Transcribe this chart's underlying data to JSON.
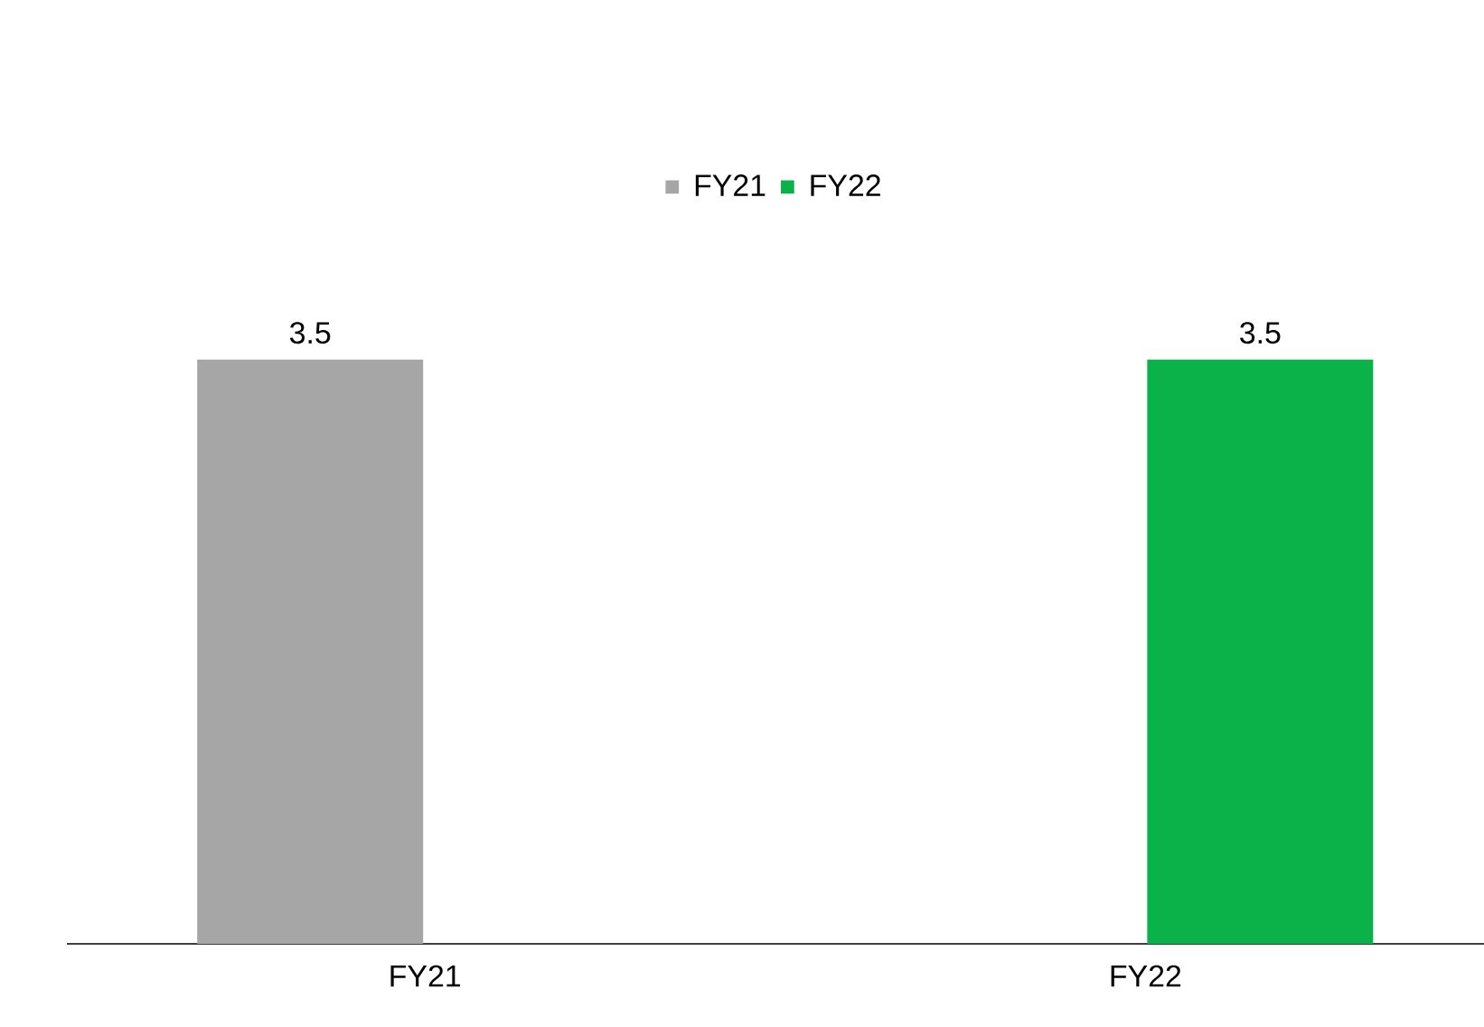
{
  "chart_data": {
    "type": "bar",
    "categories": [
      "FY21",
      "FY22"
    ],
    "series": [
      {
        "name": "FY21",
        "color": "#a6a6a6",
        "values": [
          3.5,
          null
        ]
      },
      {
        "name": "FY22",
        "color": "#0bb24a",
        "values": [
          null,
          3.5
        ]
      }
    ],
    "data_labels": true,
    "legend": "top"
  }
}
